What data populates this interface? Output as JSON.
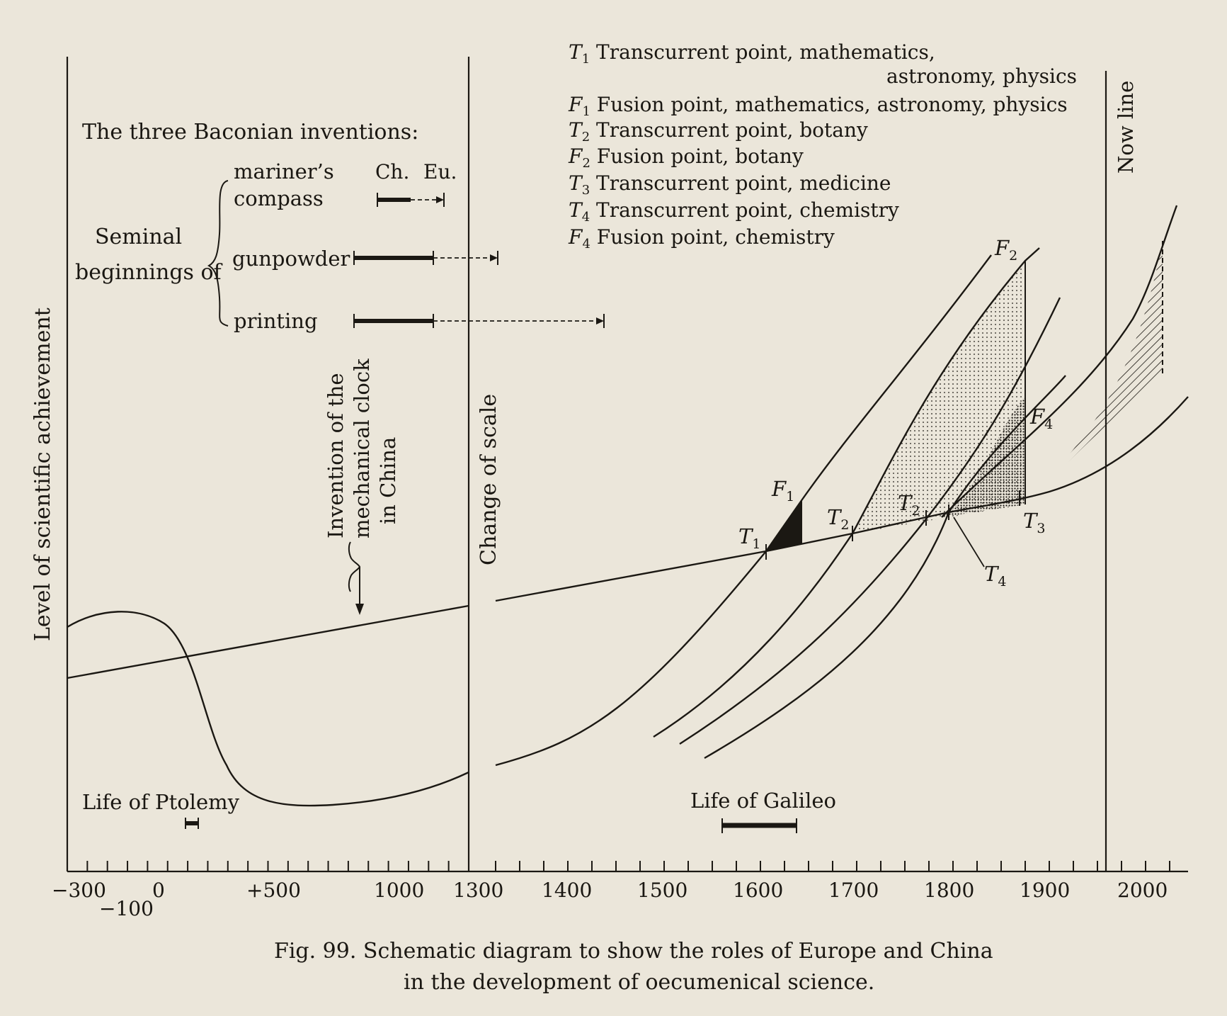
{
  "colors": {
    "paper": "#ebe6da",
    "ink": "#1b1813"
  },
  "inventions": {
    "heading": "The three Baconian inventions:",
    "seminal_line1": "Seminal",
    "seminal_line2": "beginnings of",
    "col_china": "Ch.",
    "col_europe": "Eu.",
    "compass_line1": "mariner’s",
    "compass_line2": "compass",
    "gunpowder": "gunpowder",
    "printing": "printing"
  },
  "legend": [
    {
      "sym": "T",
      "sub": "1",
      "text": "Transcurrent point, mathematics,"
    },
    {
      "sym": "",
      "sub": "",
      "text": "astronomy, physics"
    },
    {
      "sym": "F",
      "sub": "1",
      "text": "Fusion point, mathematics, astronomy, physics"
    },
    {
      "sym": "T",
      "sub": "2",
      "text": "Transcurrent point, botany"
    },
    {
      "sym": "F",
      "sub": "2",
      "text": "Fusion point, botany"
    },
    {
      "sym": "T",
      "sub": "3",
      "text": "Transcurrent point, medicine"
    },
    {
      "sym": "T",
      "sub": "4",
      "text": "Transcurrent point, chemistry"
    },
    {
      "sym": "F",
      "sub": "4",
      "text": "Fusion point, chemistry"
    }
  ],
  "y_axis_label": "Level of scientific achievement",
  "now_line_label": "Now line",
  "change_of_scale_label": "Change of scale",
  "clock_label": {
    "line1": "Invention of the",
    "line2": "mechanical clock",
    "line3": "in China"
  },
  "points": {
    "T1": {
      "sym": "T",
      "sub": "1"
    },
    "T2a": {
      "sym": "T",
      "sub": "2"
    },
    "T2b": {
      "sym": "T",
      "sub": "2"
    },
    "T3": {
      "sym": "T",
      "sub": "3"
    },
    "T4": {
      "sym": "T",
      "sub": "4"
    },
    "F1": {
      "sym": "F",
      "sub": "1"
    },
    "F2": {
      "sym": "F",
      "sub": "2"
    },
    "F4": {
      "sym": "F",
      "sub": "4"
    }
  },
  "ptolemy_label": "Life of Ptolemy",
  "galileo_label": "Life of Galileo",
  "x_ticks": [
    "−300",
    "0",
    "+500",
    "1000",
    "1300",
    "1400",
    "1500",
    "1600",
    "1700",
    "1800",
    "1900",
    "2000"
  ],
  "x_tick_minus100": "−100",
  "caption": {
    "line1": "Fig. 99. Schematic diagram to show the roles of Europe and China",
    "line2": "in the development of oecumenical science."
  }
}
